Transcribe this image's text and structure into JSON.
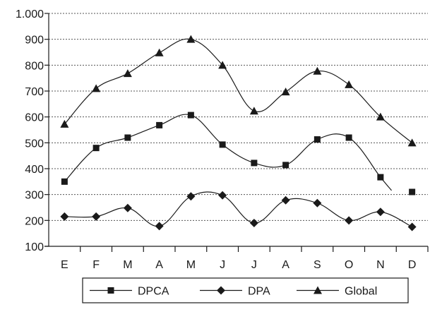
{
  "chart_data": {
    "type": "line",
    "categories": [
      "E",
      "F",
      "M",
      "A",
      "M",
      "J",
      "J",
      "A",
      "S",
      "O",
      "N",
      "D"
    ],
    "y_ticks": [
      "1.000",
      "900",
      "800",
      "700",
      "600",
      "500",
      "400",
      "300",
      "200",
      "100"
    ],
    "y_tick_values": [
      1000,
      900,
      800,
      700,
      600,
      500,
      400,
      300,
      200,
      100
    ],
    "ylim": [
      100,
      1000
    ],
    "grid": "horizontal dotted",
    "legend_position": "bottom",
    "series": [
      {
        "name": "DPCA",
        "marker": "square",
        "values": [
          350,
          480,
          520,
          568,
          607,
          493,
          422,
          414,
          513,
          520,
          367,
          310
        ],
        "line_break_before_last": true
      },
      {
        "name": "DPA",
        "marker": "diamond",
        "values": [
          215,
          215,
          248,
          178,
          293,
          297,
          190,
          278,
          267,
          200,
          233,
          175
        ]
      },
      {
        "name": "Global",
        "marker": "triangle",
        "values": [
          572,
          710,
          768,
          848,
          900,
          800,
          623,
          697,
          777,
          725,
          600,
          500
        ]
      }
    ],
    "colors": {
      "line": "#1a1a1a",
      "grid": "#555555",
      "background": "#ffffff"
    }
  }
}
